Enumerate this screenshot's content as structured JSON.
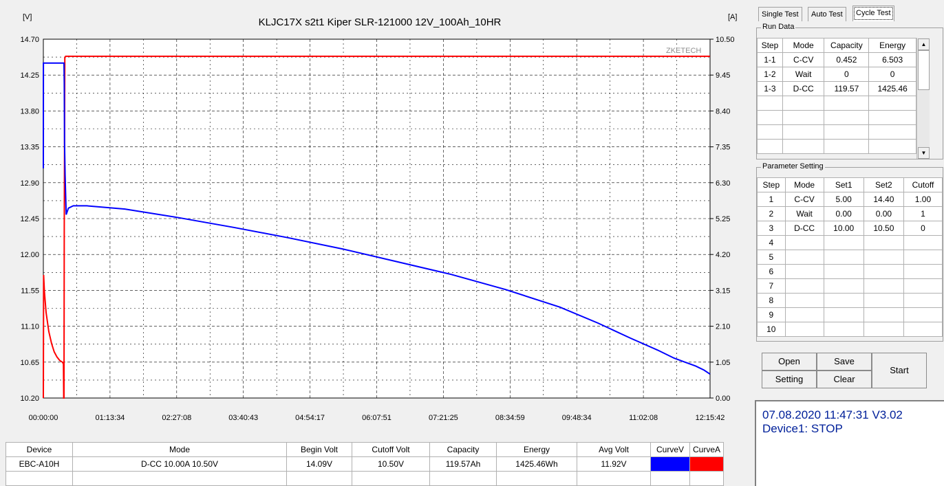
{
  "chart": {
    "title": "KLJC17X s2t1 Kiper SLR-121000 12V_100Ah_10HR",
    "left_unit": "[V]",
    "right_unit": "[A]",
    "watermark": "ZKETECH",
    "voltage_ticks": [
      "14.70",
      "14.25",
      "13.80",
      "13.35",
      "12.90",
      "12.45",
      "12.00",
      "11.55",
      "11.10",
      "10.65",
      "10.20"
    ],
    "current_ticks": [
      "10.50",
      "9.45",
      "8.40",
      "7.35",
      "6.30",
      "5.25",
      "4.20",
      "3.15",
      "2.10",
      "1.05",
      "0.00"
    ],
    "time_ticks": [
      "00:00:00",
      "01:13:34",
      "02:27:08",
      "03:40:43",
      "04:54:17",
      "06:07:51",
      "07:21:25",
      "08:34:59",
      "09:48:34",
      "11:02:08",
      "12:15:42"
    ]
  },
  "chart_data": {
    "type": "line",
    "title": "KLJC17X s2t1 Kiper SLR-121000 12V_100Ah_10HR",
    "xlabel": "",
    "ylabel": "[V]",
    "y2label": "[A]",
    "x_range": [
      "00:00:00",
      "12:15:42"
    ],
    "ylim": [
      10.2,
      14.7
    ],
    "y2lim": [
      0,
      10.5
    ],
    "grid": true,
    "series": [
      {
        "color": "#0000ff",
        "axis": "left",
        "x_hours": [
          0,
          0.001,
          0.01,
          0.38,
          0.385,
          0.39,
          0.4,
          0.42,
          0.46,
          0.55,
          0.8,
          1.5,
          2.5,
          3.5,
          4.5,
          5.5,
          6.5,
          7.5,
          8.5,
          9.5,
          10.2,
          10.8,
          11.3,
          11.6,
          11.8,
          12.0,
          12.15,
          12.26
        ],
        "values": [
          13.08,
          14.4,
          14.4,
          14.4,
          14.15,
          13.4,
          13.0,
          12.5,
          12.58,
          12.61,
          12.61,
          12.57,
          12.46,
          12.34,
          12.21,
          12.07,
          11.91,
          11.75,
          11.56,
          11.34,
          11.14,
          10.95,
          10.8,
          10.7,
          10.65,
          10.6,
          10.55,
          10.5
        ]
      },
      {
        "color": "#ff0000",
        "axis": "right",
        "x_hours": [
          0,
          0.005,
          0.02,
          0.05,
          0.1,
          0.15,
          0.2,
          0.25,
          0.3,
          0.35,
          0.37,
          0.375,
          0.38,
          0.385,
          0.395,
          0.41,
          1.0,
          6.0,
          12.26
        ],
        "values": [
          0,
          3.6,
          3.1,
          2.5,
          1.95,
          1.6,
          1.35,
          1.2,
          1.1,
          1.05,
          1.0,
          0,
          0,
          5.0,
          9.95,
          10.0,
          10.0,
          10.0,
          10.0
        ]
      }
    ]
  },
  "tabs": [
    {
      "label": "Single Test",
      "active": false
    },
    {
      "label": "Auto Test",
      "active": false
    },
    {
      "label": "Cycle Test",
      "active": true
    }
  ],
  "run_data": {
    "title": "Run Data",
    "headers": [
      "Step",
      "Mode",
      "Capacity",
      "Energy"
    ],
    "rows": [
      [
        "1-1",
        "C-CV",
        "0.452",
        "6.503"
      ],
      [
        "1-2",
        "Wait",
        "0",
        "0"
      ],
      [
        "1-3",
        "D-CC",
        "119.57",
        "1425.46"
      ]
    ]
  },
  "param": {
    "title": "Parameter Setting",
    "headers": [
      "Step",
      "Mode",
      "Set1",
      "Set2",
      "Cutoff"
    ],
    "rows": [
      [
        "1",
        "C-CV",
        "5.00",
        "14.40",
        "1.00"
      ],
      [
        "2",
        "Wait",
        "0.00",
        "0.00",
        "1"
      ],
      [
        "3",
        "D-CC",
        "10.00",
        "10.50",
        "0"
      ],
      [
        "4",
        "",
        "",
        "",
        ""
      ],
      [
        "5",
        "",
        "",
        "",
        ""
      ],
      [
        "6",
        "",
        "",
        "",
        ""
      ],
      [
        "7",
        "",
        "",
        "",
        ""
      ],
      [
        "8",
        "",
        "",
        "",
        ""
      ],
      [
        "9",
        "",
        "",
        "",
        ""
      ],
      [
        "10",
        "",
        "",
        "",
        ""
      ]
    ]
  },
  "buttons": {
    "open": "Open",
    "save": "Save",
    "setting": "Setting",
    "clear": "Clear",
    "start": "Start"
  },
  "status": {
    "line1": "07.08.2020 11:47:31  V3.02",
    "line2": "Device1: STOP"
  },
  "summary": {
    "headers": [
      "Device",
      "Mode",
      "Begin Volt",
      "Cutoff Volt",
      "Capacity",
      "Energy",
      "Avg Volt",
      "CurveV",
      "CurveA"
    ],
    "row": [
      "EBC-A10H",
      "D-CC 10.00A 10.50V",
      "14.09V",
      "10.50V",
      "119.57Ah",
      "1425.46Wh",
      "11.92V"
    ],
    "curve_v_color": "#0000ff",
    "curve_a_color": "#ff0000"
  }
}
